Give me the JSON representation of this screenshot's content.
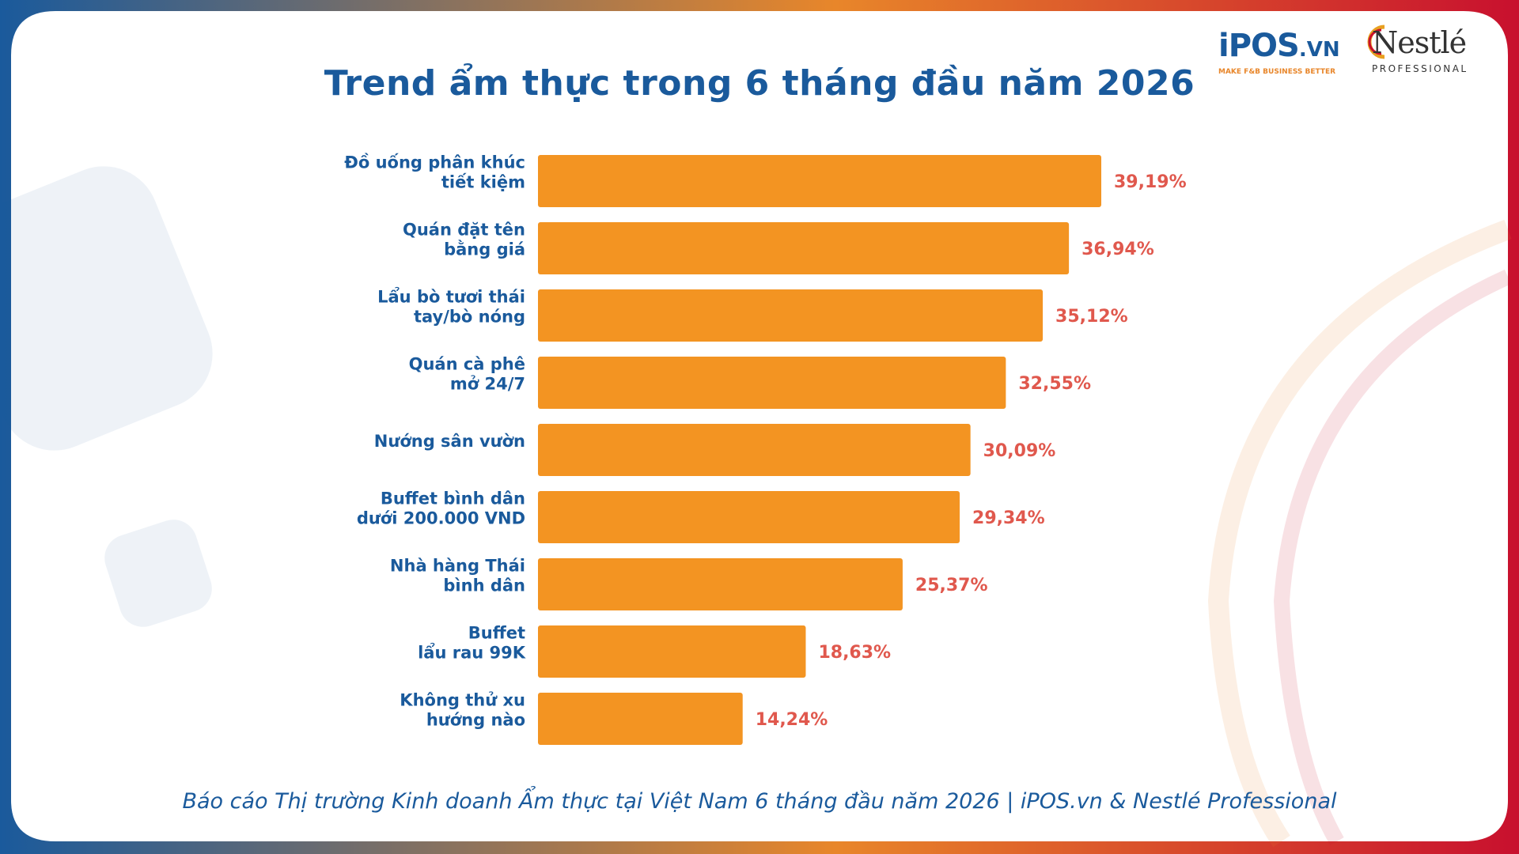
{
  "header": {
    "title": "Trend ẩm thực trong 6 tháng đầu năm 2026"
  },
  "logos": {
    "ipos_main": "iPOS",
    "ipos_suffix": ".VN",
    "ipos_tagline": "MAKE F&B BUSINESS BETTER",
    "nestle_main": "Nestlé",
    "nestle_sub": "PROFESSIONAL"
  },
  "footer": {
    "caption": "Báo cáo Thị trường Kinh doanh Ẩm thực tại Việt Nam 6 tháng đầu năm 2026  |  iPOS.vn & Nestlé Professional"
  },
  "colors": {
    "bar": "#f39422",
    "value_label": "#e0584d",
    "category_label": "#1a5a9c",
    "title": "#1a5a9c",
    "frame_start": "#1a5a9c",
    "frame_mid": "#e8862a",
    "frame_end": "#c8102e"
  },
  "chart_data": {
    "type": "bar",
    "orientation": "horizontal",
    "title": "Trend ẩm thực trong 6 tháng đầu năm 2026",
    "xlabel": "",
    "ylabel": "",
    "xlim": [
      0,
      39.19
    ],
    "grid": false,
    "categories": [
      [
        "Đồ uống phân khúc",
        "tiết kiệm"
      ],
      [
        "Quán đặt tên",
        "bằng giá"
      ],
      [
        "Lẩu bò tươi thái",
        "tay/bò nóng"
      ],
      [
        "Quán cà phê",
        "mở 24/7"
      ],
      [
        "Nướng sân vườn"
      ],
      [
        "Buffet bình dân",
        "dưới 200.000 VND"
      ],
      [
        "Nhà hàng Thái",
        "bình dân"
      ],
      [
        "Buffet",
        "lẩu rau 99K"
      ],
      [
        "Không thử xu",
        "hướng nào"
      ]
    ],
    "values": [
      39.19,
      36.94,
      35.12,
      32.55,
      30.09,
      29.34,
      25.37,
      18.63,
      14.24
    ],
    "value_labels": [
      "39,19%",
      "36,94%",
      "35,12%",
      "32,55%",
      "30,09%",
      "29,34%",
      "25,37%",
      "18,63%",
      "14,24%"
    ]
  }
}
